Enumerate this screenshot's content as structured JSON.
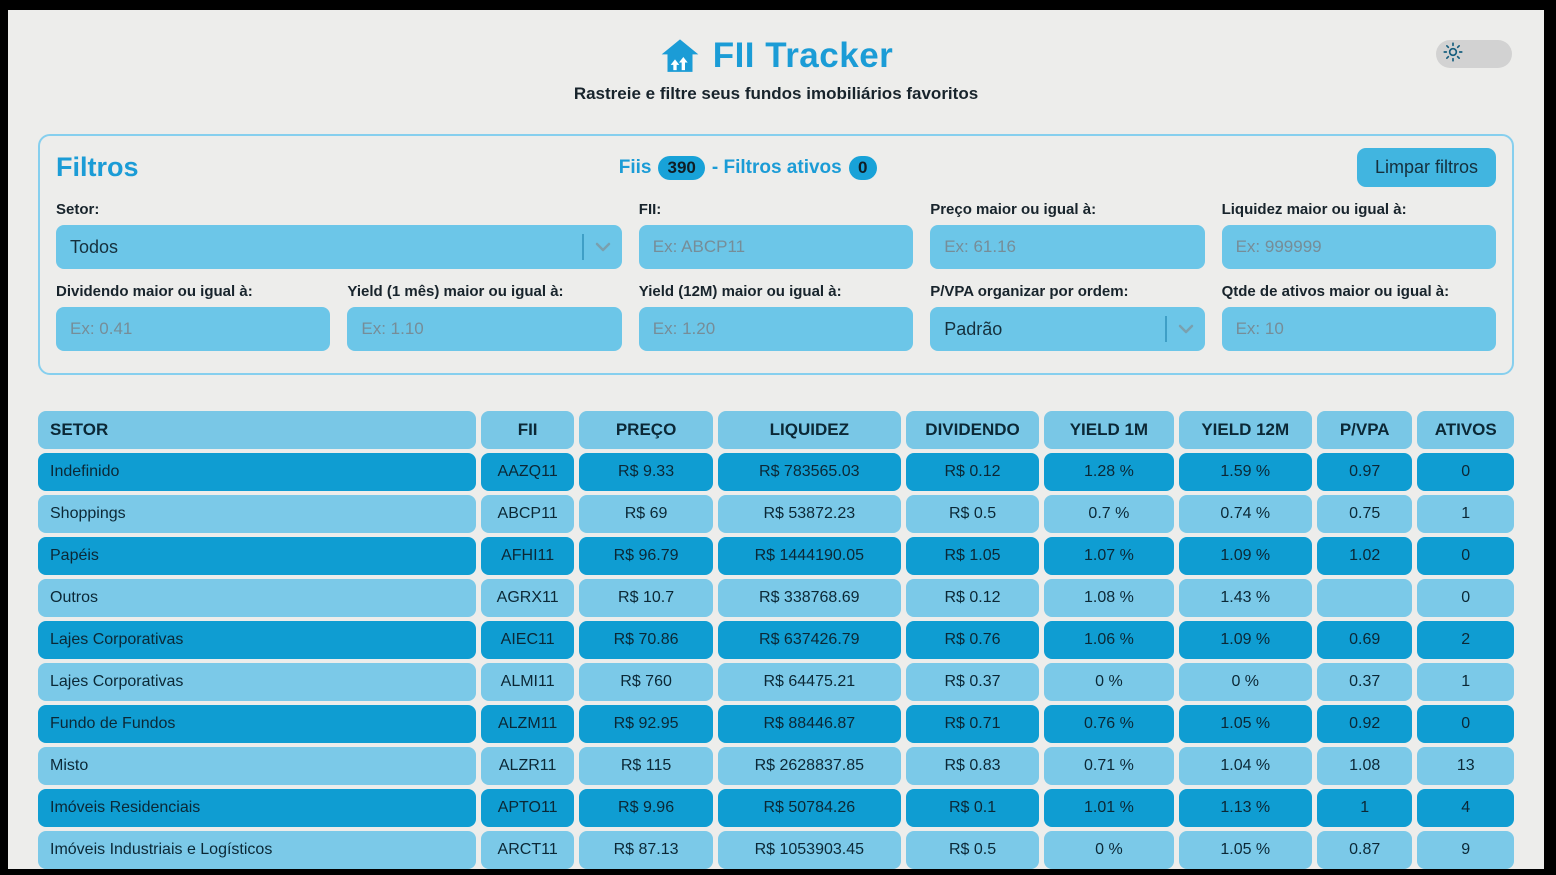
{
  "header": {
    "title": "FII Tracker",
    "subtitle": "Rastreie e filtre seus fundos imobiliários favoritos"
  },
  "filters": {
    "title": "Filtros",
    "summary": {
      "fiis_label": "Fiis",
      "fiis_count": "390",
      "active_label": "- Filtros ativos",
      "active_count": "0"
    },
    "clear_button": "Limpar filtros",
    "fields": [
      {
        "label": "Setor:",
        "type": "select",
        "value": "Todos"
      },
      {
        "label": "FII:",
        "type": "input",
        "placeholder": "Ex: ABCP11"
      },
      {
        "label": "Preço maior ou igual à:",
        "type": "input",
        "placeholder": "Ex: 61.16"
      },
      {
        "label": "Liquidez maior ou igual à:",
        "type": "input",
        "placeholder": "Ex: 999999"
      },
      {
        "label": "Dividendo maior ou igual à:",
        "type": "input",
        "placeholder": "Ex: 0.41"
      },
      {
        "label": "Yield (1 mês) maior ou igual à:",
        "type": "input",
        "placeholder": "Ex: 1.10"
      },
      {
        "label": "Yield (12M) maior ou igual à:",
        "type": "input",
        "placeholder": "Ex: 1.20"
      },
      {
        "label": "P/VPA organizar por ordem:",
        "type": "select",
        "value": "Padrão"
      },
      {
        "label": "Qtde de ativos maior ou igual à:",
        "type": "input",
        "placeholder": "Ex: 10"
      }
    ]
  },
  "table": {
    "columns": [
      "SETOR",
      "FII",
      "PREÇO",
      "LIQUIDEZ",
      "DIVIDENDO",
      "YIELD 1M",
      "YIELD 12M",
      "P/VPA",
      "ATIVOS"
    ],
    "rows": [
      [
        "Indefinido",
        "AAZQ11",
        "R$ 9.33",
        "R$ 783565.03",
        "R$ 0.12",
        "1.28 %",
        "1.59 %",
        "0.97",
        "0"
      ],
      [
        "Shoppings",
        "ABCP11",
        "R$ 69",
        "R$ 53872.23",
        "R$ 0.5",
        "0.7 %",
        "0.74 %",
        "0.75",
        "1"
      ],
      [
        "Papéis",
        "AFHI11",
        "R$ 96.79",
        "R$ 1444190.05",
        "R$ 1.05",
        "1.07 %",
        "1.09 %",
        "1.02",
        "0"
      ],
      [
        "Outros",
        "AGRX11",
        "R$ 10.7",
        "R$ 338768.69",
        "R$ 0.12",
        "1.08 %",
        "1.43 %",
        "",
        "0"
      ],
      [
        "Lajes Corporativas",
        "AIEC11",
        "R$ 70.86",
        "R$ 637426.79",
        "R$ 0.76",
        "1.06 %",
        "1.09 %",
        "0.69",
        "2"
      ],
      [
        "Lajes Corporativas",
        "ALMI11",
        "R$ 760",
        "R$ 64475.21",
        "R$ 0.37",
        "0 %",
        "0 %",
        "0.37",
        "1"
      ],
      [
        "Fundo de Fundos",
        "ALZM11",
        "R$ 92.95",
        "R$ 88446.87",
        "R$ 0.71",
        "0.76 %",
        "1.05 %",
        "0.92",
        "0"
      ],
      [
        "Misto",
        "ALZR11",
        "R$ 115",
        "R$ 2628837.85",
        "R$ 0.83",
        "0.71 %",
        "1.04 %",
        "1.08",
        "13"
      ],
      [
        "Imóveis Residenciais",
        "APTO11",
        "R$ 9.96",
        "R$ 50784.26",
        "R$ 0.1",
        "1.01 %",
        "1.13 %",
        "1",
        "4"
      ],
      [
        "Imóveis Industriais e Logísticos",
        "ARCT11",
        "R$ 87.13",
        "R$ 1053903.45",
        "R$ 0.5",
        "0 %",
        "1.05 %",
        "0.87",
        "9"
      ]
    ]
  },
  "icons": {
    "logo": "house-icon",
    "theme": "sun-icon",
    "select": "chevron-down-icon"
  },
  "colors": {
    "accent_blue": "#1b9cd6",
    "row_dark": "#0f9dd2",
    "row_light": "#7bc9e8",
    "header_cell": "#79c7e6",
    "input_bg": "#6cc6e8",
    "button_bg": "#41b5e0",
    "badge_bg": "#18a2d8",
    "panel_border": "#86cfee",
    "text_dark": "#18242c",
    "page_bg": "#ededeb"
  }
}
